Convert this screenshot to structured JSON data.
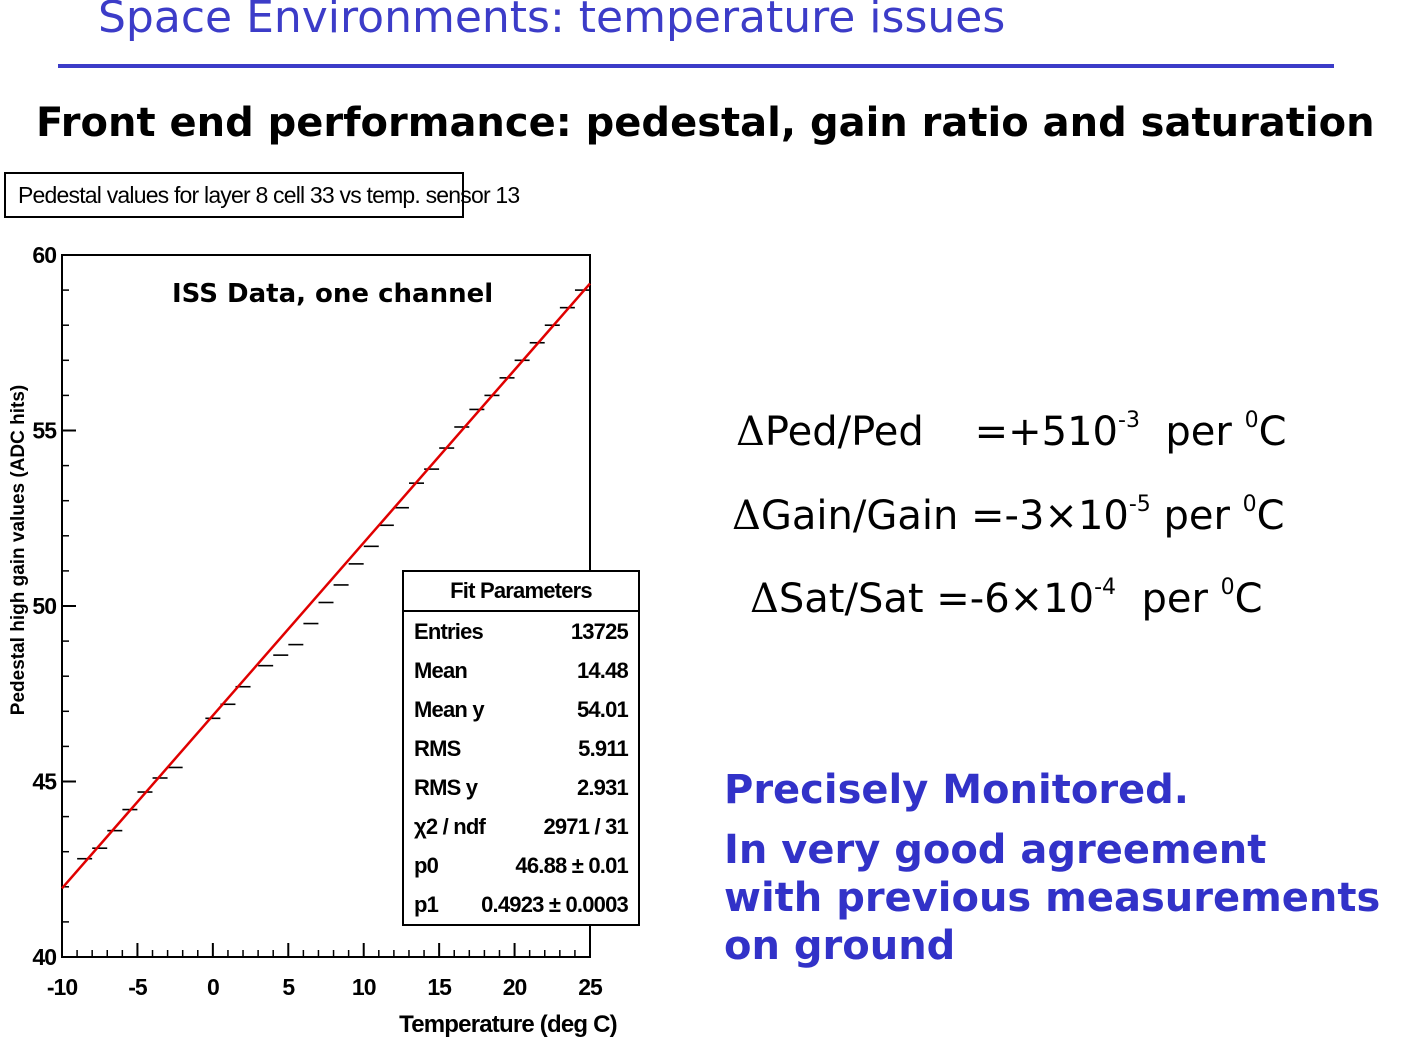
{
  "slide": {
    "title": "Space Environments: temperature issues",
    "subtitle": "Front end performance: pedestal, gain ratio and saturation",
    "accent_color": "#3c3cc8"
  },
  "plot": {
    "title": "Pedestal values for layer 8 cell 33 vs temp. sensor 13",
    "annotation": "ISS Data, one channel",
    "fit_line_color": "#e00000"
  },
  "chart_data": {
    "type": "scatter",
    "title": "Pedestal values for layer 8 cell 33 vs temp. sensor 13",
    "xlabel": "Temperature (deg C)",
    "ylabel": "Pedestal high gain values (ADC hits)",
    "xlim": [
      -10,
      25
    ],
    "ylim": [
      40,
      60
    ],
    "x_ticks": [
      "-10",
      "-5",
      "0",
      "5",
      "10",
      "15",
      "20",
      "25"
    ],
    "y_ticks": [
      "40",
      "45",
      "50",
      "55",
      "60"
    ],
    "grid": false,
    "series": [
      {
        "x": [
          -8.5,
          -7.5,
          -6.5,
          -5.5,
          -4.5,
          -3.5,
          -2.5,
          0,
          1,
          2,
          3.5,
          4.5,
          5.5,
          6.5,
          7.5,
          8.5,
          9.5,
          10.5,
          11.5,
          12.5,
          13.5,
          14.5,
          15.5,
          16.5,
          17.5,
          18.5,
          19.5,
          20.5,
          21.5,
          22.5,
          23.5,
          24.5
        ],
        "y": [
          42.8,
          43.1,
          43.6,
          44.2,
          44.7,
          45.1,
          45.4,
          46.8,
          47.2,
          47.7,
          48.3,
          48.6,
          48.9,
          49.5,
          50.1,
          50.6,
          51.2,
          51.7,
          52.3,
          52.8,
          53.5,
          53.9,
          54.5,
          55.1,
          55.6,
          56.0,
          56.5,
          57.0,
          57.5,
          58.0,
          58.5,
          59.0
        ]
      }
    ],
    "fit_line": {
      "p0": 46.88,
      "p1": 0.4923,
      "x_range": [
        -10,
        25
      ]
    }
  },
  "fit_parameters": {
    "header": "Fit Parameters",
    "rows": [
      {
        "key": "Entries",
        "value": "13725"
      },
      {
        "key": "Mean",
        "value": "14.48"
      },
      {
        "key": "Mean y",
        "value": "54.01"
      },
      {
        "key": "RMS",
        "value": "5.911"
      },
      {
        "key": "RMS y",
        "value": "2.931"
      },
      {
        "key": "χ2 / ndf",
        "value": "2971 / 31"
      },
      {
        "key": "p0",
        "value": "46.88 ± 0.01"
      },
      {
        "key": "p1",
        "value": "0.4923 ± 0.0003"
      }
    ]
  },
  "equations": [
    {
      "delta": "Δ",
      "label": "Ped/Ped",
      "eq": "=+510",
      "exp": "-3",
      "per": "per ",
      "deg": "0",
      "unit": "C"
    },
    {
      "delta": "Δ",
      "label": "Gain/Gain",
      "eq": "=-3×10",
      "exp": "-5",
      "per": "per ",
      "deg": "0",
      "unit": "C"
    },
    {
      "delta": "Δ",
      "label": "Sat/Sat",
      "eq": "=-6×10",
      "exp": "-4",
      "per": "per ",
      "deg": "0",
      "unit": "C"
    }
  ],
  "notes": {
    "line1": "Precisely Monitored.",
    "line2": "In very good agreement",
    "line3": "with previous measurements",
    "line4": "on ground",
    "color": "#3232c8"
  }
}
